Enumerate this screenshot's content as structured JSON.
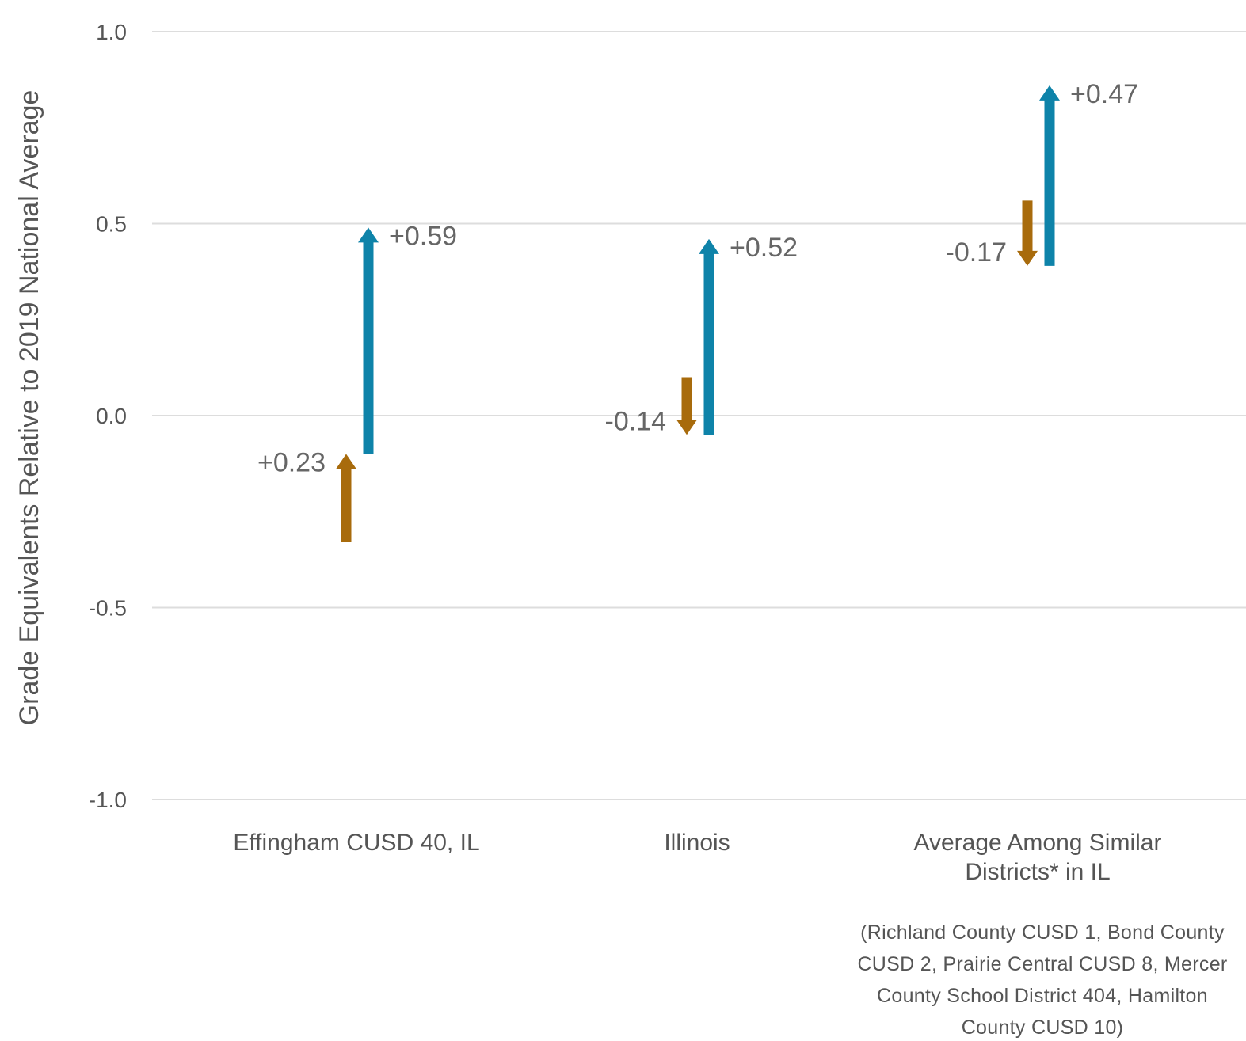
{
  "chart_data": {
    "type": "arrow",
    "ylabel": "Grade Equivalents Relative to 2019 National Average",
    "ylim": [
      -1.0,
      1.0
    ],
    "yticks": [
      {
        "value": 1.0,
        "label": "1.0"
      },
      {
        "value": 0.5,
        "label": "0.5"
      },
      {
        "value": 0.0,
        "label": "0.0"
      },
      {
        "value": -0.5,
        "label": "-0.5"
      },
      {
        "value": -1.0,
        "label": "-1.0"
      }
    ],
    "grid": true,
    "categories": [
      {
        "lines": [
          "Effingham CUSD 40, IL"
        ]
      },
      {
        "lines": [
          "Illinois"
        ]
      },
      {
        "lines": [
          "Average Among Similar",
          "Districts* in IL"
        ]
      }
    ],
    "footnote": [
      "(Richland County CUSD 1, Bond County",
      "CUSD 2, Prairie Central CUSD 8, Mercer",
      "County School District 404, Hamilton",
      "County CUSD 10)"
    ],
    "series": [
      {
        "color": "#a86b0c",
        "arrows": [
          {
            "from": -0.33,
            "to": -0.1,
            "label": "+0.23"
          },
          {
            "from": 0.1,
            "to": -0.05,
            "label": "-0.14"
          },
          {
            "from": 0.56,
            "to": 0.39,
            "label": "-0.17"
          }
        ]
      },
      {
        "color": "#0e83a9",
        "arrows": [
          {
            "from": -0.1,
            "to": 0.49,
            "label": "+0.59"
          },
          {
            "from": -0.05,
            "to": 0.46,
            "label": "+0.52"
          },
          {
            "from": 0.39,
            "to": 0.86,
            "label": "+0.47"
          }
        ]
      }
    ]
  }
}
